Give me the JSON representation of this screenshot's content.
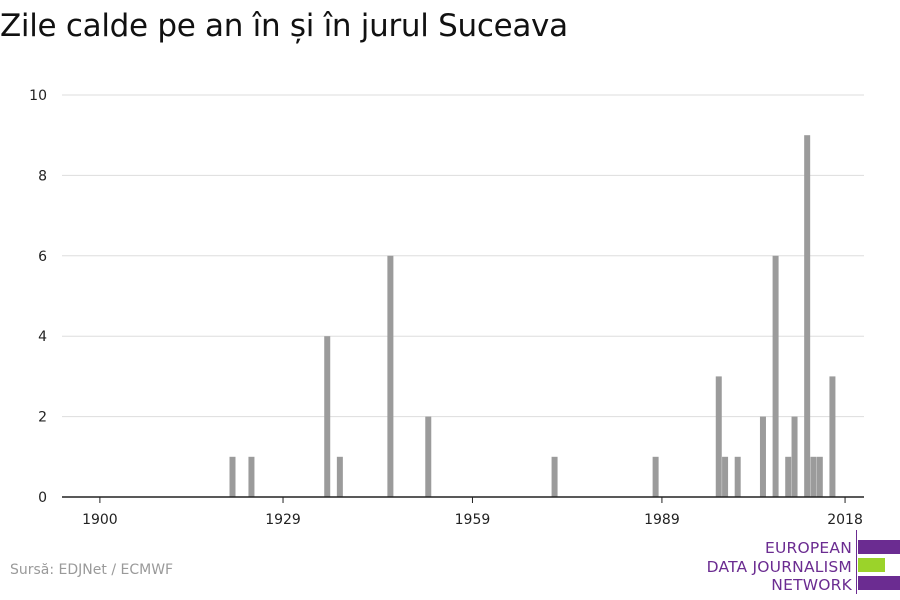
{
  "title": "Zile calde pe an în și în jurul Suceava",
  "source": "Sursă: EDJNet / ECMWF",
  "logo": {
    "line1": "EUROPEAN",
    "line2": "DATA JOURNALISM",
    "line3": "NETWORK",
    "colors": {
      "purple": "#6b2c91",
      "green": "#9bd32a"
    }
  },
  "colors": {
    "bar": "#9b9b9b",
    "grid": "#dddddd",
    "axis": "#222222"
  },
  "chart_data": {
    "type": "bar",
    "title": "Zile calde pe an în și în jurul Suceava",
    "xlabel": "",
    "ylabel": "",
    "xlim": [
      1894,
      2021
    ],
    "ylim": [
      0,
      10
    ],
    "x_ticks": [
      1900,
      1929,
      1959,
      1989,
      2018
    ],
    "y_ticks": [
      0,
      2,
      4,
      6,
      8,
      10
    ],
    "grid": true,
    "legend": "none",
    "x": [
      1921,
      1924,
      1936,
      1938,
      1946,
      1952,
      1972,
      1988,
      1998,
      1999,
      2001,
      2005,
      2007,
      2009,
      2010,
      2012,
      2013,
      2014,
      2016
    ],
    "values": [
      1,
      1,
      4,
      1,
      6,
      2,
      1,
      1,
      3,
      1,
      1,
      2,
      6,
      1,
      2,
      9,
      1,
      1,
      3
    ]
  }
}
